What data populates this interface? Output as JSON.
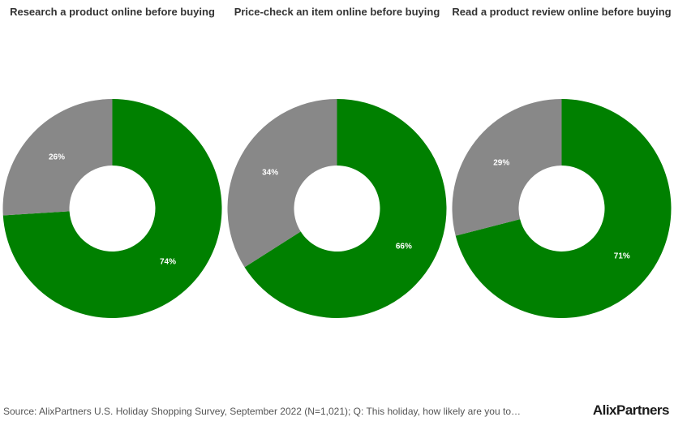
{
  "colors": {
    "yes": "#008000",
    "no": "#888888",
    "title": "#333333"
  },
  "chart_data": [
    {
      "type": "pie",
      "title": "Research a product online before buying",
      "slices": [
        {
          "label": "74%",
          "value": 74
        },
        {
          "label": "26%",
          "value": 26
        }
      ]
    },
    {
      "type": "pie",
      "title": "Price-check an item online before buying",
      "slices": [
        {
          "label": "66%",
          "value": 66
        },
        {
          "label": "34%",
          "value": 34
        }
      ]
    },
    {
      "type": "pie",
      "title": "Read a product review online before buying",
      "slices": [
        {
          "label": "71%",
          "value": 71
        },
        {
          "label": "29%",
          "value": 29
        }
      ]
    }
  ],
  "footer": {
    "source": "Source: AlixPartners U.S. Holiday Shopping Survey, September 2022 (N=1,021); Q: This holiday, how likely are you to…",
    "brand": "AlixPartners"
  }
}
